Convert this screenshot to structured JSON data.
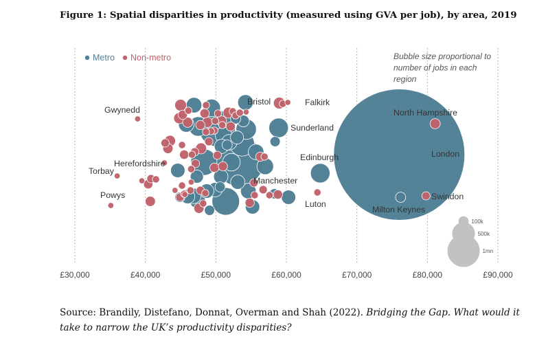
{
  "title": "Figure 1: Spatial disparities in productivity (measured using GVA per job), by area, 2019",
  "source": {
    "prefix": "Source:  Brandily, Distefano, Donnat, Overman and Shah (2022). ",
    "italic": "Bridging the Gap. What would it take to narrow the UK’s productivity disparities?"
  },
  "chart_data": {
    "type": "scatter",
    "xlabel": "",
    "ylabel": "",
    "xlim": [
      30000,
      90000
    ],
    "x_ticks": [
      30000,
      40000,
      50000,
      60000,
      70000,
      80000,
      90000
    ],
    "x_tick_labels": [
      "£30,000",
      "£40,000",
      "£50,000",
      "£60,000",
      "£70,000",
      "£80,000",
      "£90,000"
    ],
    "grid": "vertical dotted",
    "legend": {
      "placement": "top-left",
      "entries": [
        {
          "name": "Metro",
          "color": "#4e7f95"
        },
        {
          "name": "Non-metro",
          "color": "#c0626a"
        }
      ]
    },
    "size_note": "Bubble size proportional to number of jobs in each region",
    "size_legend": [
      {
        "label": "100k",
        "jobs": 100
      },
      {
        "label": "500k",
        "jobs": 500
      },
      {
        "label": "1mn",
        "jobs": 1000
      }
    ],
    "series": [
      {
        "name": "Metro",
        "color": "#4e7f95",
        "points": [
          {
            "x": 76000,
            "y": 225,
            "jobs": 5000,
            "label": "London"
          },
          {
            "x": 53300,
            "y": 235,
            "jobs": 700,
            "label": "Manchester"
          },
          {
            "x": 58900,
            "y": 186,
            "jobs": 110,
            "label": "Sunderland"
          },
          {
            "x": 64800,
            "y": 252,
            "jobs": 110,
            "label": "Edinburgh"
          },
          {
            "x": 76200,
            "y": 287,
            "jobs": 30,
            "label": "Milton Keynes"
          },
          {
            "x": 54200,
            "y": 149,
            "jobs": 70,
            "label": "Bristol"
          },
          {
            "x": 51400,
            "y": 293,
            "jobs": 220
          },
          {
            "x": 50200,
            "y": 187,
            "jobs": 380
          },
          {
            "x": 53700,
            "y": 209,
            "jobs": 180
          },
          {
            "x": 54300,
            "y": 188,
            "jobs": 120
          },
          {
            "x": 48300,
            "y": 236,
            "jobs": 200
          },
          {
            "x": 49400,
            "y": 157,
            "jobs": 90
          },
          {
            "x": 46900,
            "y": 153,
            "jobs": 70
          },
          {
            "x": 47500,
            "y": 184,
            "jobs": 110
          },
          {
            "x": 45800,
            "y": 181,
            "jobs": 70
          },
          {
            "x": 51100,
            "y": 197,
            "jobs": 80
          },
          {
            "x": 51900,
            "y": 207,
            "jobs": 70
          },
          {
            "x": 50800,
            "y": 213,
            "jobs": 60
          },
          {
            "x": 50700,
            "y": 257,
            "jobs": 60
          },
          {
            "x": 53100,
            "y": 265,
            "jobs": 60
          },
          {
            "x": 52200,
            "y": 236,
            "jobs": 90
          },
          {
            "x": 55700,
            "y": 221,
            "jobs": 70
          },
          {
            "x": 57000,
            "y": 242,
            "jobs": 80
          },
          {
            "x": 54600,
            "y": 278,
            "jobs": 70
          },
          {
            "x": 55200,
            "y": 301,
            "jobs": 60
          },
          {
            "x": 49900,
            "y": 276,
            "jobs": 60
          },
          {
            "x": 48700,
            "y": 278,
            "jobs": 60
          },
          {
            "x": 47400,
            "y": 292,
            "jobs": 70
          },
          {
            "x": 47200,
            "y": 288,
            "jobs": 80
          },
          {
            "x": 46800,
            "y": 285,
            "jobs": 70
          },
          {
            "x": 46000,
            "y": 286,
            "jobs": 60
          },
          {
            "x": 44600,
            "y": 248,
            "jobs": 60
          },
          {
            "x": 47300,
            "y": 257,
            "jobs": 50
          },
          {
            "x": 60300,
            "y": 287,
            "jobs": 60
          },
          {
            "x": 58400,
            "y": 206,
            "jobs": 30
          },
          {
            "x": 58300,
            "y": 282,
            "jobs": 30
          },
          {
            "x": 49100,
            "y": 306,
            "jobs": 30
          },
          {
            "x": 50600,
            "y": 272,
            "jobs": 30
          },
          {
            "x": 44900,
            "y": 287,
            "jobs": 30
          },
          {
            "x": 51600,
            "y": 211,
            "jobs": 30
          },
          {
            "x": 52800,
            "y": 173,
            "jobs": 30
          },
          {
            "x": 53900,
            "y": 176,
            "jobs": 40
          },
          {
            "x": 53000,
            "y": 200,
            "jobs": 50
          }
        ]
      },
      {
        "name": "Non-metro",
        "color": "#c0626a",
        "points": [
          {
            "x": 38900,
            "y": 173,
            "jobs": 10,
            "label": "Gwynedd"
          },
          {
            "x": 60200,
            "y": 149,
            "jobs": 10,
            "label": "Falkirk"
          },
          {
            "x": 81100,
            "y": 180,
            "jobs": 30,
            "label": "North Hampshire"
          },
          {
            "x": 42700,
            "y": 237,
            "jobs": 10,
            "label": "Herefordshire"
          },
          {
            "x": 36000,
            "y": 256,
            "jobs": 10,
            "label": "Torbay"
          },
          {
            "x": 35100,
            "y": 299,
            "jobs": 10,
            "label": "Powys"
          },
          {
            "x": 79800,
            "y": 285,
            "jobs": 20,
            "label": "Swindon"
          },
          {
            "x": 64400,
            "y": 280,
            "jobs": 15,
            "label": "Luton"
          },
          {
            "x": 59000,
            "y": 150,
            "jobs": 40
          },
          {
            "x": 45000,
            "y": 153,
            "jobs": 40
          },
          {
            "x": 44800,
            "y": 172,
            "jobs": 35
          },
          {
            "x": 46000,
            "y": 178,
            "jobs": 30
          },
          {
            "x": 45300,
            "y": 167,
            "jobs": 25
          },
          {
            "x": 43500,
            "y": 205,
            "jobs": 35
          },
          {
            "x": 43200,
            "y": 216,
            "jobs": 30
          },
          {
            "x": 42800,
            "y": 208,
            "jobs": 20
          },
          {
            "x": 45200,
            "y": 211,
            "jobs": 15
          },
          {
            "x": 45500,
            "y": 225,
            "jobs": 25
          },
          {
            "x": 47900,
            "y": 216,
            "jobs": 35
          },
          {
            "x": 47800,
            "y": 182,
            "jobs": 25
          },
          {
            "x": 48400,
            "y": 165,
            "jobs": 25
          },
          {
            "x": 48800,
            "y": 178,
            "jobs": 30
          },
          {
            "x": 49000,
            "y": 206,
            "jobs": 20
          },
          {
            "x": 49800,
            "y": 244,
            "jobs": 25
          },
          {
            "x": 51000,
            "y": 242,
            "jobs": 25
          },
          {
            "x": 50200,
            "y": 226,
            "jobs": 20
          },
          {
            "x": 51800,
            "y": 164,
            "jobs": 35
          },
          {
            "x": 52400,
            "y": 162,
            "jobs": 15
          },
          {
            "x": 52800,
            "y": 168,
            "jobs": 15
          },
          {
            "x": 53400,
            "y": 164,
            "jobs": 15
          },
          {
            "x": 54300,
            "y": 163,
            "jobs": 10
          },
          {
            "x": 56300,
            "y": 228,
            "jobs": 25
          },
          {
            "x": 56900,
            "y": 228,
            "jobs": 15
          },
          {
            "x": 55400,
            "y": 266,
            "jobs": 20
          },
          {
            "x": 56700,
            "y": 276,
            "jobs": 20
          },
          {
            "x": 55500,
            "y": 284,
            "jobs": 15
          },
          {
            "x": 57600,
            "y": 284,
            "jobs": 15
          },
          {
            "x": 58800,
            "y": 283,
            "jobs": 25
          },
          {
            "x": 59500,
            "y": 151,
            "jobs": 15
          },
          {
            "x": 54800,
            "y": 295,
            "jobs": 25
          },
          {
            "x": 50800,
            "y": 176,
            "jobs": 30
          },
          {
            "x": 49900,
            "y": 176,
            "jobs": 15
          },
          {
            "x": 50300,
            "y": 165,
            "jobs": 15
          },
          {
            "x": 49800,
            "y": 190,
            "jobs": 15
          },
          {
            "x": 50900,
            "y": 182,
            "jobs": 15
          },
          {
            "x": 49300,
            "y": 191,
            "jobs": 15
          },
          {
            "x": 48600,
            "y": 192,
            "jobs": 15
          },
          {
            "x": 47000,
            "y": 221,
            "jobs": 20
          },
          {
            "x": 46600,
            "y": 225,
            "jobs": 15
          },
          {
            "x": 47800,
            "y": 277,
            "jobs": 20
          },
          {
            "x": 48500,
            "y": 281,
            "jobs": 15
          },
          {
            "x": 46400,
            "y": 277,
            "jobs": 15
          },
          {
            "x": 47600,
            "y": 303,
            "jobs": 30
          },
          {
            "x": 48200,
            "y": 296,
            "jobs": 15
          },
          {
            "x": 45500,
            "y": 282,
            "jobs": 15
          },
          {
            "x": 45200,
            "y": 270,
            "jobs": 15
          },
          {
            "x": 46500,
            "y": 265,
            "jobs": 10
          },
          {
            "x": 44900,
            "y": 287,
            "jobs": 20
          },
          {
            "x": 44200,
            "y": 277,
            "jobs": 10
          },
          {
            "x": 45600,
            "y": 283,
            "jobs": 10
          },
          {
            "x": 47100,
            "y": 238,
            "jobs": 20
          },
          {
            "x": 46500,
            "y": 246,
            "jobs": 15
          },
          {
            "x": 40800,
            "y": 260,
            "jobs": 20
          },
          {
            "x": 41500,
            "y": 261,
            "jobs": 15
          },
          {
            "x": 40400,
            "y": 268,
            "jobs": 25
          },
          {
            "x": 39500,
            "y": 263,
            "jobs": 10
          },
          {
            "x": 40700,
            "y": 293,
            "jobs": 30
          },
          {
            "x": 48600,
            "y": 153,
            "jobs": 15
          },
          {
            "x": 46100,
            "y": 161,
            "jobs": 15
          },
          {
            "x": 52100,
            "y": 184,
            "jobs": 25
          }
        ]
      }
    ],
    "annotations": [
      {
        "text": "North Hampshire"
      },
      {
        "text": "London"
      },
      {
        "text": "Swindon"
      },
      {
        "text": "Milton Keynes"
      }
    ]
  }
}
